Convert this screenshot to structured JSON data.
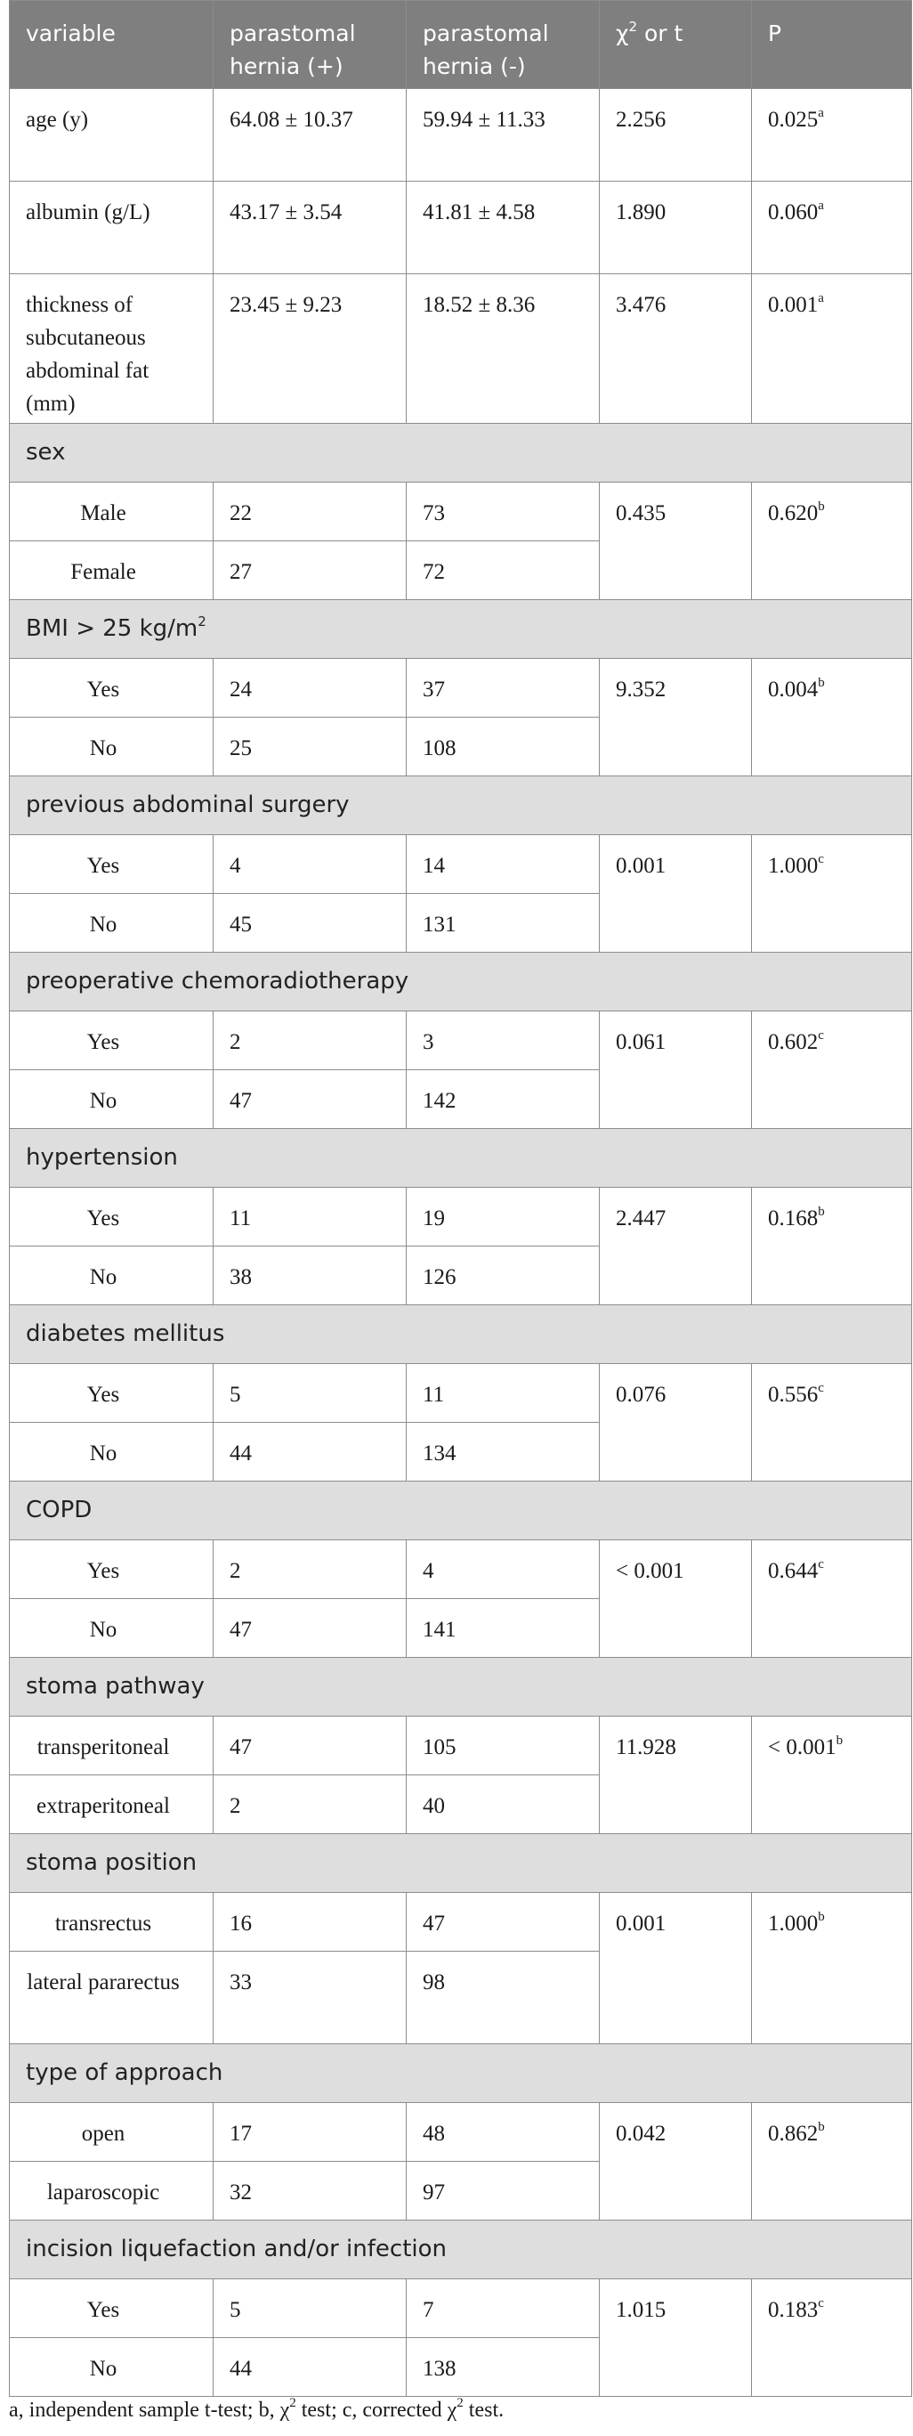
{
  "headers": [
    {
      "text": "variable"
    },
    {
      "text": "parastomal hernia (+)"
    },
    {
      "text": "parastomal hernia (-)"
    },
    {
      "text": "χ",
      "sup": "2",
      "after": " or t"
    },
    {
      "text": "P"
    }
  ],
  "rows": [
    {
      "type": "data",
      "cls": "r-tall",
      "cells": [
        {
          "text": "age (y)"
        },
        {
          "text": "64.08 ± 10.37"
        },
        {
          "text": "59.94 ± 11.33"
        },
        {
          "text": "2.256"
        },
        {
          "text": "0.025",
          "sup": "a"
        }
      ]
    },
    {
      "type": "data",
      "cls": "r-tall",
      "cells": [
        {
          "text": "albumin (g/L)"
        },
        {
          "text": "43.17 ± 3.54"
        },
        {
          "text": "41.81 ± 4.58"
        },
        {
          "text": "1.890"
        },
        {
          "text": "0.060",
          "sup": "a"
        }
      ]
    },
    {
      "type": "data",
      "cls": "r-xtall",
      "cells": [
        {
          "text": "thickness of subcutaneous abdominal fat (mm)"
        },
        {
          "text": "23.45 ± 9.23"
        },
        {
          "text": "18.52 ± 8.36"
        },
        {
          "text": "3.476"
        },
        {
          "text": "0.001",
          "sup": "a"
        }
      ]
    },
    {
      "type": "section",
      "text": "sex"
    },
    {
      "type": "data",
      "cells": [
        {
          "text": "Male",
          "ind": true
        },
        {
          "text": "22"
        },
        {
          "text": "73"
        },
        {
          "text": "0.435",
          "rowspan": 2
        },
        {
          "text": "0.620",
          "sup": "b",
          "rowspan": 2
        }
      ]
    },
    {
      "type": "data",
      "cells": [
        {
          "text": "Female",
          "ind": true
        },
        {
          "text": "27"
        },
        {
          "text": "72"
        }
      ]
    },
    {
      "type": "section",
      "text": "BMI > 25 kg/m",
      "sup": "2"
    },
    {
      "type": "data",
      "cells": [
        {
          "text": "Yes",
          "ind": true
        },
        {
          "text": "24"
        },
        {
          "text": "37"
        },
        {
          "text": "9.352",
          "rowspan": 2
        },
        {
          "text": "0.004",
          "sup": "b",
          "rowspan": 2
        }
      ]
    },
    {
      "type": "data",
      "cells": [
        {
          "text": "No",
          "ind": true
        },
        {
          "text": "25"
        },
        {
          "text": "108"
        }
      ]
    },
    {
      "type": "section",
      "text": "previous abdominal surgery"
    },
    {
      "type": "data",
      "cells": [
        {
          "text": "Yes",
          "ind": true
        },
        {
          "text": "4"
        },
        {
          "text": "14"
        },
        {
          "text": "0.001",
          "rowspan": 2
        },
        {
          "text": "1.000",
          "sup": "c",
          "rowspan": 2
        }
      ]
    },
    {
      "type": "data",
      "cells": [
        {
          "text": "No",
          "ind": true
        },
        {
          "text": "45"
        },
        {
          "text": "131"
        }
      ]
    },
    {
      "type": "section",
      "text": "preoperative chemoradiotherapy"
    },
    {
      "type": "data",
      "cells": [
        {
          "text": "Yes",
          "ind": true
        },
        {
          "text": "2"
        },
        {
          "text": "3"
        },
        {
          "text": "0.061",
          "rowspan": 2
        },
        {
          "text": "0.602",
          "sup": "c",
          "rowspan": 2
        }
      ]
    },
    {
      "type": "data",
      "cells": [
        {
          "text": "No",
          "ind": true
        },
        {
          "text": "47"
        },
        {
          "text": "142"
        }
      ]
    },
    {
      "type": "section",
      "text": "hypertension"
    },
    {
      "type": "data",
      "cells": [
        {
          "text": "Yes",
          "ind": true
        },
        {
          "text": "11"
        },
        {
          "text": "19"
        },
        {
          "text": "2.447",
          "rowspan": 2
        },
        {
          "text": "0.168",
          "sup": "b",
          "rowspan": 2
        }
      ]
    },
    {
      "type": "data",
      "cells": [
        {
          "text": "No",
          "ind": true
        },
        {
          "text": "38"
        },
        {
          "text": "126"
        }
      ]
    },
    {
      "type": "section",
      "text": "diabetes mellitus"
    },
    {
      "type": "data",
      "cells": [
        {
          "text": "Yes",
          "ind": true
        },
        {
          "text": "5"
        },
        {
          "text": "11"
        },
        {
          "text": "0.076",
          "rowspan": 2
        },
        {
          "text": "0.556",
          "sup": "c",
          "rowspan": 2
        }
      ]
    },
    {
      "type": "data",
      "cells": [
        {
          "text": "No",
          "ind": true
        },
        {
          "text": "44"
        },
        {
          "text": "134"
        }
      ]
    },
    {
      "type": "section",
      "text": "COPD"
    },
    {
      "type": "data",
      "cells": [
        {
          "text": "Yes",
          "ind": true
        },
        {
          "text": "2"
        },
        {
          "text": "4"
        },
        {
          "text": "< 0.001",
          "rowspan": 2
        },
        {
          "text": "0.644",
          "sup": "c",
          "rowspan": 2
        }
      ]
    },
    {
      "type": "data",
      "cells": [
        {
          "text": "No",
          "ind": true
        },
        {
          "text": "47"
        },
        {
          "text": "141"
        }
      ]
    },
    {
      "type": "section",
      "text": "stoma pathway"
    },
    {
      "type": "data",
      "cells": [
        {
          "text": "transperitoneal",
          "ind": true
        },
        {
          "text": "47"
        },
        {
          "text": "105"
        },
        {
          "text": "11.928",
          "rowspan": 2
        },
        {
          "text": "< 0.001",
          "sup": "b",
          "rowspan": 2
        }
      ]
    },
    {
      "type": "data",
      "cells": [
        {
          "text": "extraperitoneal",
          "ind": true
        },
        {
          "text": "2"
        },
        {
          "text": "40"
        }
      ]
    },
    {
      "type": "section",
      "text": "stoma position"
    },
    {
      "type": "data",
      "cells": [
        {
          "text": "transrectus",
          "ind": true
        },
        {
          "text": "16"
        },
        {
          "text": "47"
        },
        {
          "text": "0.001",
          "rowspan": 2
        },
        {
          "text": "1.000",
          "sup": "b",
          "rowspan": 2
        }
      ]
    },
    {
      "type": "data",
      "cls": "r-tall",
      "cells": [
        {
          "text": "lateral pararectus",
          "ind": true
        },
        {
          "text": "33"
        },
        {
          "text": "98"
        }
      ]
    },
    {
      "type": "section",
      "text": "type of approach"
    },
    {
      "type": "data",
      "cells": [
        {
          "text": "open",
          "ind": true
        },
        {
          "text": "17"
        },
        {
          "text": "48"
        },
        {
          "text": "0.042",
          "rowspan": 2
        },
        {
          "text": "0.862",
          "sup": "b",
          "rowspan": 2
        }
      ]
    },
    {
      "type": "data",
      "cells": [
        {
          "text": "laparoscopic",
          "ind": true
        },
        {
          "text": "32"
        },
        {
          "text": "97"
        }
      ]
    },
    {
      "type": "section",
      "text": "incision liquefaction and/or infection"
    },
    {
      "type": "data",
      "cells": [
        {
          "text": "Yes",
          "ind": true
        },
        {
          "text": "5"
        },
        {
          "text": "7"
        },
        {
          "text": "1.015",
          "rowspan": 2
        },
        {
          "text": "0.183",
          "sup": "c",
          "rowspan": 2
        }
      ]
    },
    {
      "type": "data",
      "cells": [
        {
          "text": "No",
          "ind": true
        },
        {
          "text": "44"
        },
        {
          "text": "138"
        }
      ]
    }
  ],
  "footnote": [
    {
      "text": "a, independent sample t-test; b, χ"
    },
    {
      "text": "2",
      "sup": true
    },
    {
      "text": " test; c, corrected χ"
    },
    {
      "text": "2",
      "sup": true
    },
    {
      "text": " test."
    }
  ]
}
